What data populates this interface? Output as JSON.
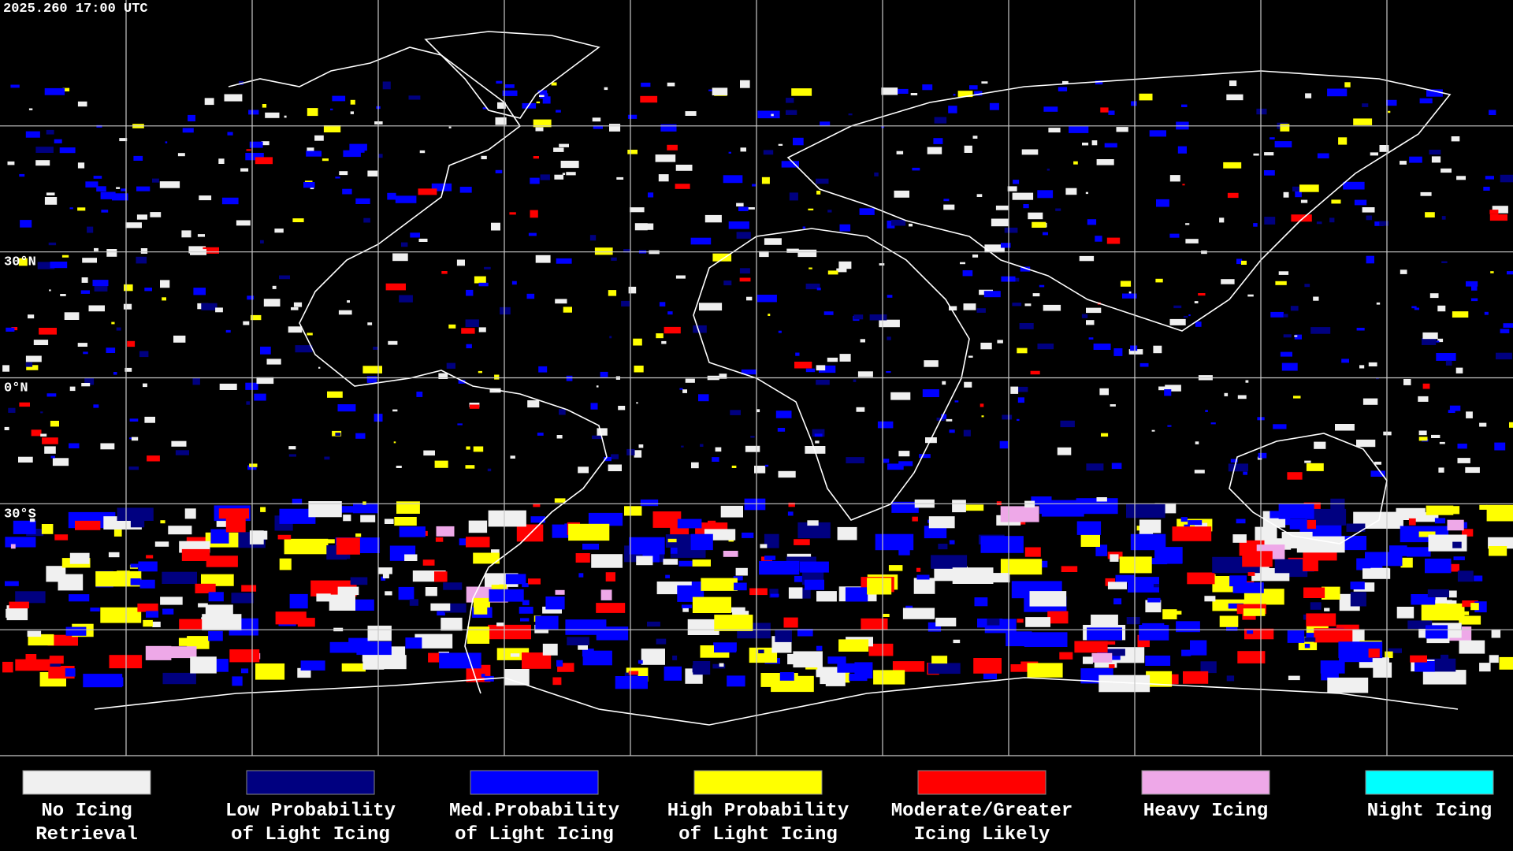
{
  "header": {
    "timestamp": "2025.260 17:00 UTC"
  },
  "map": {
    "latitude_labels": [
      "30°N",
      "0°N",
      "30°S"
    ]
  },
  "legend": {
    "items": [
      {
        "lines": [
          "No Icing",
          "Retrieval"
        ],
        "color": "#f0f0f0"
      },
      {
        "lines": [
          "Low Probability",
          "of Light Icing"
        ],
        "color": "#000080"
      },
      {
        "lines": [
          "Med.Probability",
          "of Light Icing"
        ],
        "color": "#0000ff"
      },
      {
        "lines": [
          "High Probability",
          "of Light Icing"
        ],
        "color": "#ffff00"
      },
      {
        "lines": [
          "Moderate/Greater",
          "Icing Likely"
        ],
        "color": "#ff0000"
      },
      {
        "lines": [
          "Heavy Icing"
        ],
        "color": "#eea8e8"
      },
      {
        "lines": [
          "Night Icing"
        ],
        "color": "#00ffff"
      }
    ]
  }
}
